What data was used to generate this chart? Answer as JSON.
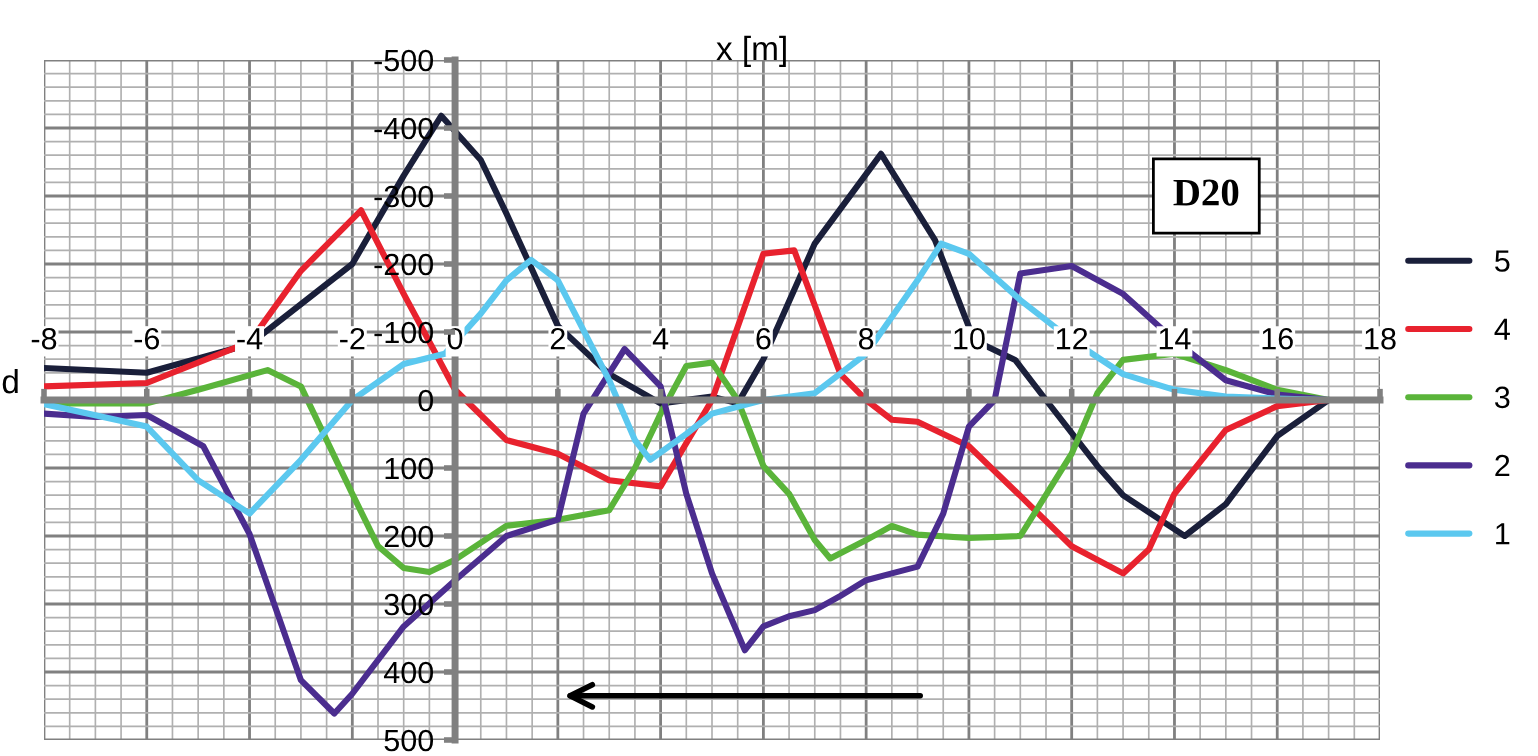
{
  "chart_data": {
    "type": "line",
    "xlabel": "x [m]",
    "ylabel": "d",
    "annotations": [
      "D20"
    ],
    "xlim": [
      -8,
      18
    ],
    "xticks": [
      -8,
      -6,
      -4,
      -2,
      0,
      2,
      4,
      6,
      8,
      10,
      12,
      14,
      16,
      18
    ],
    "ylim": [
      500,
      -500
    ],
    "yticks": [
      -500,
      -400,
      -300,
      -200,
      -100,
      0,
      100,
      200,
      300,
      400,
      500
    ],
    "grid": true,
    "legend": "right",
    "marker": "none",
    "line_style": "solid",
    "series": [
      {
        "name": "5",
        "color": "#1a1f3a",
        "x": [
          -8,
          -6,
          -4,
          -2,
          -1,
          -0.27,
          0.5,
          1,
          2,
          3,
          4,
          5,
          5.5,
          6,
          7,
          8.29,
          9.34,
          10.1,
          10.9,
          11.5,
          12.5,
          13,
          14.2,
          15,
          16,
          17
        ],
        "values": [
          -47,
          -40,
          -82,
          -200,
          -330,
          -418,
          -353,
          -274,
          -109,
          -38,
          5,
          -5,
          5,
          -60,
          -230,
          -362,
          -235,
          -88,
          -59,
          0,
          97,
          140,
          200,
          153,
          53,
          0
        ]
      },
      {
        "name": "4",
        "color": "#e8222e",
        "x": [
          -8,
          -6,
          -4,
          -3,
          -1.83,
          -1,
          0,
          1,
          2,
          3,
          4,
          5,
          6,
          6.6,
          7.5,
          8,
          8.5,
          9,
          10,
          11,
          12,
          13,
          13.5,
          14,
          15,
          16,
          17
        ],
        "values": [
          -20,
          -25,
          -85,
          -190,
          -279,
          -156,
          -15,
          59,
          79,
          118,
          127,
          0,
          -215,
          -220,
          -38,
          0,
          29,
          32,
          68,
          141,
          215,
          255,
          220,
          138,
          44,
          9,
          0
        ]
      },
      {
        "name": "3",
        "color": "#5ab43a",
        "x": [
          -8,
          -6,
          -5,
          -3.65,
          -3,
          -2,
          -1.5,
          -1,
          -0.5,
          0,
          1,
          2,
          3,
          3.5,
          4,
          4.5,
          5,
          5.5,
          6,
          6.5,
          7,
          7.3,
          8,
          8.5,
          9,
          10,
          11,
          12,
          12.5,
          13,
          14,
          15,
          16,
          17
        ],
        "values": [
          5,
          5,
          -15,
          -44,
          -20,
          138,
          215,
          247,
          253,
          235,
          185,
          176,
          162,
          100,
          20,
          -50,
          -55,
          0,
          97,
          138,
          206,
          233,
          206,
          185,
          198,
          203,
          200,
          79,
          -10,
          -59,
          -68,
          -44,
          -15,
          0
        ]
      },
      {
        "name": "2",
        "color": "#4b2d8f",
        "x": [
          -8,
          -7,
          -6,
          -4.9,
          -4,
          -3,
          -2.35,
          -2,
          -1,
          0,
          1,
          2,
          2.5,
          3.3,
          4,
          4.5,
          5,
          5.64,
          6,
          6.5,
          7,
          7.5,
          8,
          8.5,
          9,
          9.5,
          10,
          10.5,
          11,
          12,
          13,
          14,
          15,
          16,
          17
        ],
        "values": [
          20,
          25,
          22,
          68,
          197,
          412,
          461,
          432,
          333,
          265,
          200,
          176,
          20,
          -75,
          -20,
          138,
          255,
          368,
          333,
          318,
          309,
          288,
          265,
          255,
          245,
          167,
          39,
          0,
          -186,
          -197,
          -156,
          -88,
          -29,
          -8,
          0
        ]
      },
      {
        "name": "1",
        "color": "#5bc8ef",
        "x": [
          -8,
          -6,
          -5,
          -4,
          -3,
          -2,
          -1,
          -0.2,
          0.5,
          1,
          1.48,
          2,
          3,
          3.5,
          3.8,
          4.5,
          5,
          6,
          7,
          8,
          9,
          9.46,
          10,
          11,
          12,
          13,
          14,
          15,
          16,
          17
        ],
        "values": [
          6,
          39,
          118,
          167,
          88,
          0,
          -53,
          -68,
          -127,
          -176,
          -206,
          -176,
          -29,
          59,
          88,
          50,
          20,
          0,
          -10,
          -68,
          -176,
          -230,
          -215,
          -147,
          -88,
          -38,
          -15,
          -5,
          -2,
          0
        ]
      }
    ]
  }
}
